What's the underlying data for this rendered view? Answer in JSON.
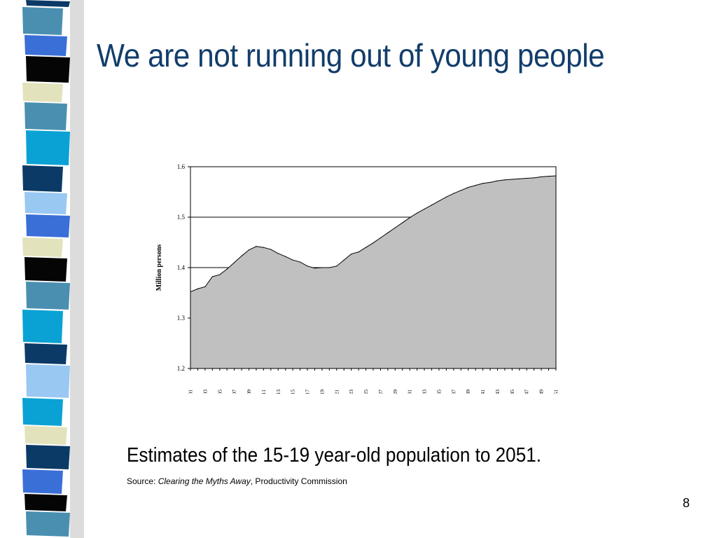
{
  "slide": {
    "title": "We are not running out of young people",
    "caption": "Estimates of the 15-19 year-old population to 2051.",
    "source_prefix": "Source: ",
    "source_title": "Clearing the Myths Away",
    "source_suffix": ", Productivity Commission",
    "page_number": "8"
  },
  "colors": {
    "title": "#123d6b",
    "area_fill": "#c0c0c0",
    "strip_palette": [
      "#0b3a66",
      "#4a8fb0",
      "#0aa2d4",
      "#3a6fd8",
      "#e2e2bc",
      "#050505",
      "#99c8f2"
    ]
  },
  "chart_data": {
    "type": "area",
    "title": "",
    "xlabel": "",
    "ylabel": "Million persons",
    "ylim": [
      1.2,
      1.6
    ],
    "yticks": [
      1.2,
      1.3,
      1.4,
      1.5,
      1.6
    ],
    "grid": "horizontal",
    "legend": "none",
    "x": [
      2001,
      2002,
      2003,
      2004,
      2005,
      2006,
      2007,
      2008,
      2009,
      2010,
      2011,
      2012,
      2013,
      2014,
      2015,
      2016,
      2017,
      2018,
      2019,
      2020,
      2021,
      2022,
      2023,
      2024,
      2025,
      2026,
      2027,
      2028,
      2029,
      2030,
      2031,
      2032,
      2033,
      2034,
      2035,
      2036,
      2037,
      2038,
      2039,
      2040,
      2041,
      2042,
      2043,
      2044,
      2045,
      2046,
      2047,
      2048,
      2049,
      2050,
      2051
    ],
    "xtick_labels": [
      "2001",
      "2003",
      "2005",
      "2007",
      "2009",
      "2011",
      "2013",
      "2015",
      "2017",
      "2019",
      "2021",
      "2023",
      "2025",
      "2027",
      "2029",
      "2031",
      "2033",
      "2035",
      "2037",
      "2039",
      "2041",
      "2043",
      "2045",
      "2047",
      "2049",
      "2051"
    ],
    "values": [
      1.352,
      1.358,
      1.362,
      1.382,
      1.386,
      1.397,
      1.41,
      1.423,
      1.435,
      1.442,
      1.44,
      1.436,
      1.428,
      1.422,
      1.415,
      1.411,
      1.403,
      1.399,
      1.4,
      1.4,
      1.403,
      1.415,
      1.427,
      1.431,
      1.44,
      1.449,
      1.459,
      1.469,
      1.479,
      1.489,
      1.499,
      1.508,
      1.516,
      1.524,
      1.532,
      1.54,
      1.547,
      1.553,
      1.559,
      1.563,
      1.567,
      1.569,
      1.572,
      1.574,
      1.575,
      1.576,
      1.577,
      1.578,
      1.58,
      1.581,
      1.582
    ]
  }
}
